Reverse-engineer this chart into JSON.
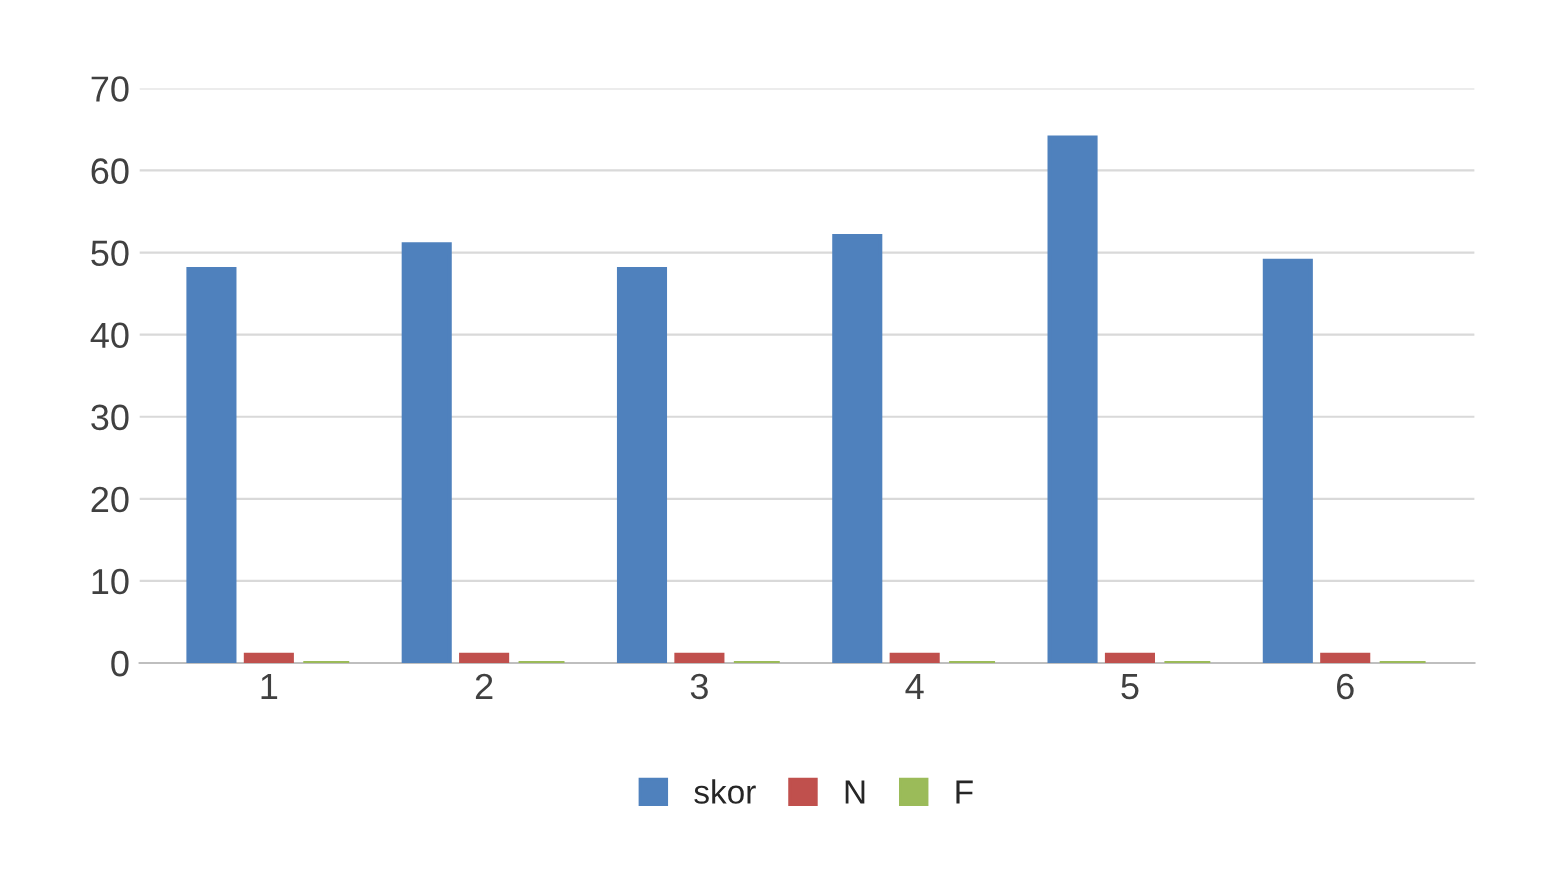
{
  "chart_data": {
    "type": "bar",
    "categories": [
      "1",
      "2",
      "3",
      "4",
      "5",
      "6"
    ],
    "series": [
      {
        "name": "skor",
        "color": "#4f81bd",
        "values": [
          48,
          51,
          48,
          52,
          64,
          49
        ]
      },
      {
        "name": "N",
        "color": "#c0504d",
        "values": [
          1,
          1,
          1,
          1,
          1,
          1
        ]
      },
      {
        "name": "F",
        "color": "#9bbb59",
        "values": [
          0,
          0,
          0,
          0,
          0,
          0
        ]
      }
    ],
    "ylim": [
      0,
      70
    ],
    "yticks": [
      0,
      10,
      20,
      30,
      40,
      50,
      60,
      70
    ],
    "grid": "y",
    "legend": "bottom"
  }
}
